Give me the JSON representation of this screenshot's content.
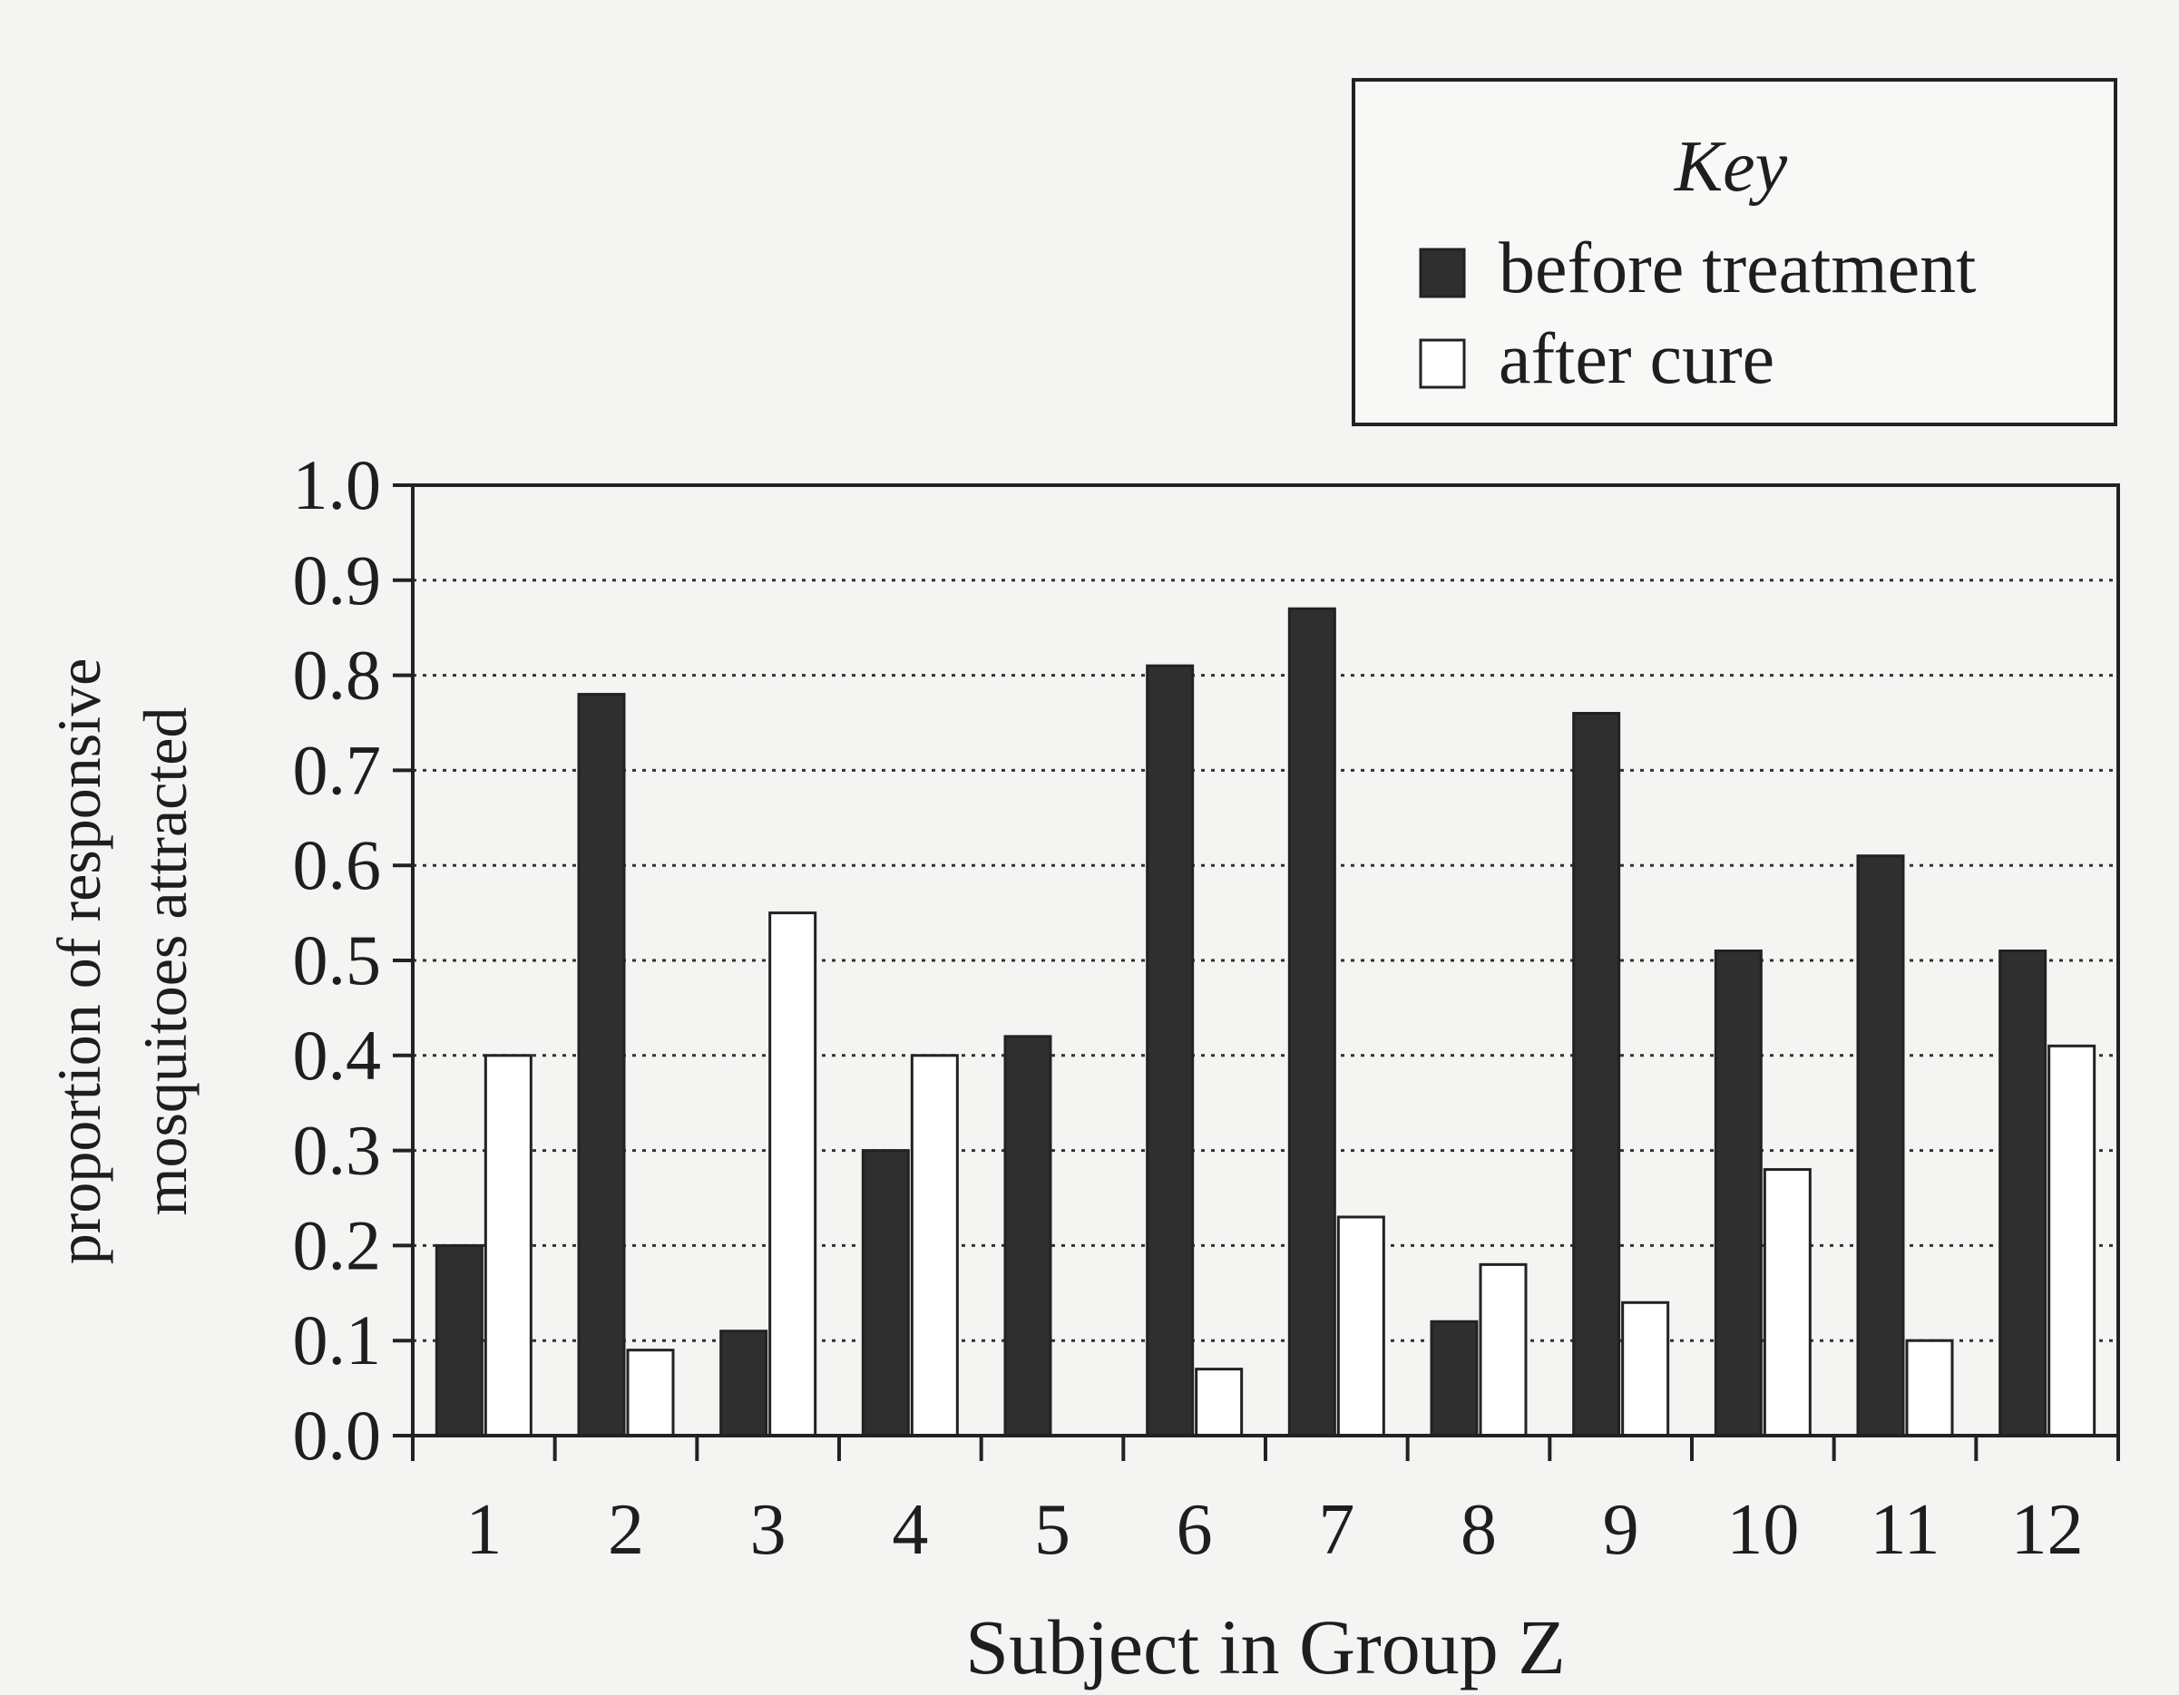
{
  "chart_data": {
    "type": "bar",
    "categories": [
      "1",
      "2",
      "3",
      "4",
      "5",
      "6",
      "7",
      "8",
      "9",
      "10",
      "11",
      "12"
    ],
    "series": [
      {
        "name": "before treatment",
        "values": [
          0.2,
          0.78,
          0.11,
          0.3,
          0.42,
          0.81,
          0.87,
          0.12,
          0.76,
          0.51,
          0.61,
          0.51
        ],
        "color": "#2f2f2f"
      },
      {
        "name": "after cure",
        "values": [
          0.4,
          0.09,
          0.55,
          0.4,
          0.0,
          0.07,
          0.23,
          0.18,
          0.14,
          0.28,
          0.1,
          0.41
        ],
        "color": "#ffffff"
      }
    ],
    "xlabel": "Subject in Group Z",
    "ylabel_lines": [
      "proportion of responsive",
      "mosquitoes attracted"
    ],
    "ylim": [
      0,
      1.0
    ],
    "yticks": [
      "0.0",
      "0.1",
      "0.2",
      "0.3",
      "0.4",
      "0.5",
      "0.6",
      "0.7",
      "0.8",
      "0.9",
      "1.0"
    ],
    "grid": "horizontal dotted",
    "legend": {
      "title": "Key",
      "position": "top-right"
    }
  }
}
